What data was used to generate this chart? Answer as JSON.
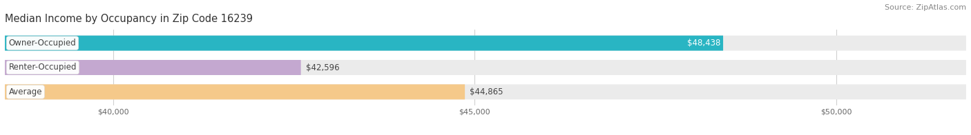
{
  "title": "Median Income by Occupancy in Zip Code 16239",
  "source": "Source: ZipAtlas.com",
  "categories": [
    "Owner-Occupied",
    "Renter-Occupied",
    "Average"
  ],
  "values": [
    48438,
    42596,
    44865
  ],
  "bar_colors": [
    "#29b5c3",
    "#c4a8d0",
    "#f5c98a"
  ],
  "bar_bg_color": "#ebebeb",
  "value_labels": [
    "$48,438",
    "$42,596",
    "$44,865"
  ],
  "value_label_inside": [
    true,
    false,
    false
  ],
  "value_label_colors": [
    "#ffffff",
    "#444444",
    "#444444"
  ],
  "xmin": 38500,
  "xmax": 51800,
  "xticks": [
    40000,
    45000,
    50000
  ],
  "xtick_labels": [
    "$40,000",
    "$45,000",
    "$50,000"
  ],
  "figsize": [
    14.06,
    1.96
  ],
  "dpi": 100,
  "title_fontsize": 10.5,
  "source_fontsize": 8,
  "label_fontsize": 8.5,
  "value_fontsize": 8.5,
  "tick_fontsize": 8,
  "bar_height": 0.62,
  "grid_color": "#d0d0d0",
  "background_color": "#ffffff",
  "label_bg_color": "#ffffff",
  "cat_label_color": "#444444"
}
